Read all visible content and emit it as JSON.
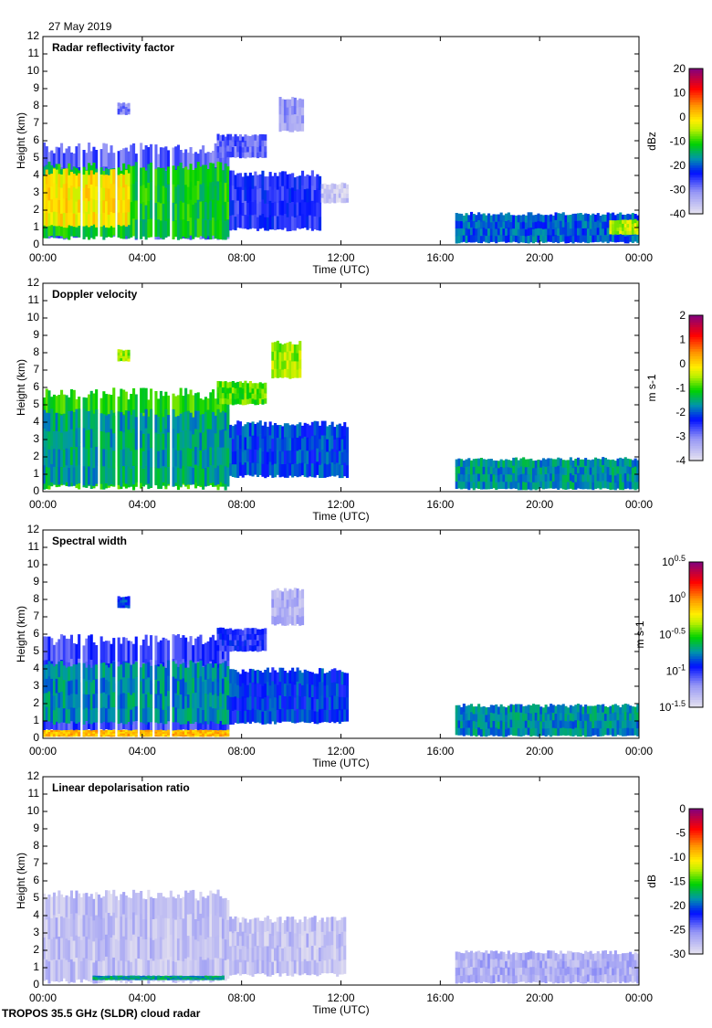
{
  "date_label": "27 May 2019",
  "footer": "TROPOS 35.5 GHz (SLDR) cloud radar",
  "chart_data": [
    {
      "type": "heatmap",
      "title": "Radar reflectivity factor",
      "xlabel": "Time (UTC)",
      "ylabel": "Height (km)",
      "xlim": [
        0,
        24
      ],
      "ylim": [
        0,
        12
      ],
      "xticks": [
        "00:00",
        "04:00",
        "08:00",
        "12:00",
        "16:00",
        "20:00",
        "00:00"
      ],
      "yticks": [
        "0",
        "1",
        "2",
        "3",
        "4",
        "5",
        "6",
        "7",
        "8",
        "9",
        "10",
        "11",
        "12"
      ],
      "colorbar": {
        "label": "dBz",
        "range": [
          -40,
          20
        ],
        "ticks": [
          "20",
          "10",
          "0",
          "-10",
          "-20",
          "-30",
          "-40"
        ],
        "log": false
      },
      "regions": [
        {
          "t": [
            0,
            7.5
          ],
          "h": [
            0.3,
            5.9
          ],
          "value": -28
        },
        {
          "t": [
            0,
            7.5
          ],
          "h": [
            0.3,
            4.8
          ],
          "value": -12
        },
        {
          "t": [
            0,
            3.5
          ],
          "h": [
            1.0,
            4.4
          ],
          "value": -1
        },
        {
          "t": [
            7.5,
            11.2
          ],
          "h": [
            0.8,
            4.3
          ],
          "value": -25
        },
        {
          "t": [
            11.2,
            12.3
          ],
          "h": [
            2.4,
            3.6
          ],
          "value": -37
        },
        {
          "t": [
            3.0,
            3.5
          ],
          "h": [
            7.5,
            8.2
          ],
          "value": -30
        },
        {
          "t": [
            7.0,
            9.0
          ],
          "h": [
            5.0,
            6.4
          ],
          "value": -28
        },
        {
          "t": [
            9.5,
            10.5
          ],
          "h": [
            6.5,
            8.6
          ],
          "value": -32
        },
        {
          "t": [
            16.6,
            24
          ],
          "h": [
            0.1,
            1.9
          ],
          "value": -20
        },
        {
          "t": [
            22.8,
            24
          ],
          "h": [
            0.6,
            1.5
          ],
          "value": -5
        }
      ]
    },
    {
      "type": "heatmap",
      "title": "Doppler velocity",
      "xlabel": "Time (UTC)",
      "ylabel": "Height (km)",
      "xlim": [
        0,
        24
      ],
      "ylim": [
        0,
        12
      ],
      "xticks": [
        "00:00",
        "04:00",
        "08:00",
        "12:00",
        "16:00",
        "20:00",
        "00:00"
      ],
      "yticks": [
        "0",
        "1",
        "2",
        "3",
        "4",
        "5",
        "6",
        "7",
        "8",
        "9",
        "10",
        "11",
        "12"
      ],
      "colorbar": {
        "label": "m s-1",
        "range": [
          -4,
          2
        ],
        "ticks": [
          "2",
          "1",
          "0",
          "-1",
          "-2",
          "-3",
          "-4"
        ],
        "log": false
      },
      "regions": [
        {
          "t": [
            0,
            7.5
          ],
          "h": [
            0.1,
            6.0
          ],
          "value": -1.1
        },
        {
          "t": [
            0,
            7.5
          ],
          "h": [
            0.3,
            4.8
          ],
          "value": -1.6
        },
        {
          "t": [
            7.5,
            12.3
          ],
          "h": [
            0.8,
            4.1
          ],
          "value": -2.1
        },
        {
          "t": [
            3.0,
            3.5
          ],
          "h": [
            7.5,
            8.2
          ],
          "value": -0.6
        },
        {
          "t": [
            7.0,
            9.0
          ],
          "h": [
            5.0,
            6.4
          ],
          "value": -0.9
        },
        {
          "t": [
            9.2,
            10.4
          ],
          "h": [
            6.5,
            8.7
          ],
          "value": -0.6
        },
        {
          "t": [
            16.6,
            24
          ],
          "h": [
            0.1,
            2.0
          ],
          "value": -1.7
        }
      ]
    },
    {
      "type": "heatmap",
      "title": "Spectral width",
      "xlabel": "Time (UTC)",
      "ylabel": "Height (km)",
      "xlim": [
        0,
        24
      ],
      "ylim": [
        0,
        12
      ],
      "xticks": [
        "00:00",
        "04:00",
        "08:00",
        "12:00",
        "16:00",
        "20:00",
        "00:00"
      ],
      "yticks": [
        "0",
        "1",
        "2",
        "3",
        "4",
        "5",
        "6",
        "7",
        "8",
        "9",
        "10",
        "11",
        "12"
      ],
      "colorbar": {
        "label": "m s-1",
        "range": [
          -1.5,
          0.5
        ],
        "ticks": [
          "10^0.5",
          "10^0",
          "10^-0.5",
          "10^-1",
          "10^-1.5"
        ],
        "log": true
      },
      "regions": [
        {
          "t": [
            0,
            7.5
          ],
          "h": [
            0.2,
            6.0
          ],
          "value": -1.05
        },
        {
          "t": [
            0,
            7.5
          ],
          "h": [
            0.8,
            4.5
          ],
          "value": -0.75
        },
        {
          "t": [
            0,
            7.5
          ],
          "h": [
            0.1,
            0.5
          ],
          "value": -0.1
        },
        {
          "t": [
            7.5,
            12.3
          ],
          "h": [
            0.8,
            4.1
          ],
          "value": -0.9
        },
        {
          "t": [
            3.0,
            3.5
          ],
          "h": [
            7.5,
            8.2
          ],
          "value": -0.9
        },
        {
          "t": [
            7.0,
            9.0
          ],
          "h": [
            5.0,
            6.4
          ],
          "value": -1.0
        },
        {
          "t": [
            9.2,
            10.5
          ],
          "h": [
            6.5,
            8.7
          ],
          "value": -1.3
        },
        {
          "t": [
            16.6,
            24
          ],
          "h": [
            0.1,
            2.0
          ],
          "value": -0.75
        }
      ]
    },
    {
      "type": "heatmap",
      "title": "Linear depolarisation ratio",
      "xlabel": "Time (UTC)",
      "ylabel": "Height (km)",
      "xlim": [
        0,
        24
      ],
      "ylim": [
        0,
        12
      ],
      "xticks": [
        "00:00",
        "04:00",
        "08:00",
        "12:00",
        "16:00",
        "20:00",
        "00:00"
      ],
      "yticks": [
        "0",
        "1",
        "2",
        "3",
        "4",
        "5",
        "6",
        "7",
        "8",
        "9",
        "10",
        "11",
        "12"
      ],
      "colorbar": {
        "label": "dB",
        "range": [
          -30,
          0
        ],
        "ticks": [
          "0",
          "-5",
          "-10",
          "-15",
          "-20",
          "-25",
          "-30"
        ],
        "log": false
      },
      "regions": [
        {
          "t": [
            0,
            7.5
          ],
          "h": [
            0.1,
            5.5
          ],
          "value": -28
        },
        {
          "t": [
            7.5,
            12.2
          ],
          "h": [
            0.5,
            4.0
          ],
          "value": -28
        },
        {
          "t": [
            2.0,
            7.3
          ],
          "h": [
            0.3,
            0.55
          ],
          "value": -18
        },
        {
          "t": [
            16.6,
            24
          ],
          "h": [
            0.1,
            2.0
          ],
          "value": -27
        }
      ]
    }
  ]
}
